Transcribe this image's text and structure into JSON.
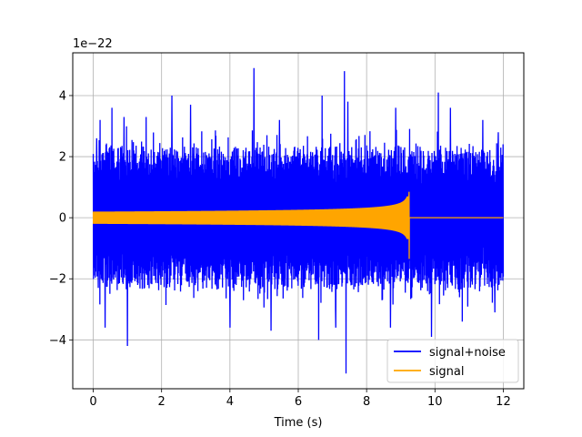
{
  "chart_data": {
    "type": "line",
    "title": "",
    "xlabel": "Time (s)",
    "ylabel": "",
    "y_offset_text": "1e−22",
    "xlim": [
      -0.6,
      12.6
    ],
    "ylim": [
      -5.6,
      5.4
    ],
    "x_ticks": [
      0,
      2,
      4,
      6,
      8,
      10,
      12
    ],
    "y_ticks": [
      -4,
      -2,
      0,
      2,
      4
    ],
    "x_tick_labels": [
      "0",
      "2",
      "4",
      "6",
      "8",
      "10",
      "12"
    ],
    "y_tick_labels": [
      "−4",
      "−2",
      "0",
      "2",
      "4"
    ],
    "grid": true,
    "legend_position": "lower-right",
    "series": [
      {
        "name": "signal+noise",
        "color": "#0000ff",
        "x_range": [
          0,
          12
        ],
        "typical_envelope": 2.2,
        "peaks": [
          {
            "x": 0.1,
            "y": 2.6
          },
          {
            "x": 0.2,
            "y": 3.2
          },
          {
            "x": 0.55,
            "y": 3.6
          },
          {
            "x": 0.9,
            "y": 3.3
          },
          {
            "x": 1.55,
            "y": 3.3
          },
          {
            "x": 2.3,
            "y": 4.0
          },
          {
            "x": 2.85,
            "y": 3.7
          },
          {
            "x": 4.7,
            "y": 4.9
          },
          {
            "x": 5.45,
            "y": 3.2
          },
          {
            "x": 6.7,
            "y": 4.0
          },
          {
            "x": 7.35,
            "y": 4.8
          },
          {
            "x": 7.45,
            "y": 3.8
          },
          {
            "x": 8.85,
            "y": 3.6
          },
          {
            "x": 10.1,
            "y": 4.1
          },
          {
            "x": 10.45,
            "y": 3.6
          },
          {
            "x": 11.4,
            "y": 3.2
          },
          {
            "x": 11.85,
            "y": 2.8
          },
          {
            "x": 0.15,
            "y": -2.3
          },
          {
            "x": 0.2,
            "y": -3.4
          },
          {
            "x": 0.35,
            "y": -3.6
          },
          {
            "x": 1.0,
            "y": -4.2
          },
          {
            "x": 1.55,
            "y": -3.6
          },
          {
            "x": 2.3,
            "y": -3.5
          },
          {
            "x": 4.0,
            "y": -3.6
          },
          {
            "x": 5.2,
            "y": -3.7
          },
          {
            "x": 6.6,
            "y": -4.0
          },
          {
            "x": 7.1,
            "y": -3.6
          },
          {
            "x": 7.4,
            "y": -5.1
          },
          {
            "x": 8.7,
            "y": -3.6
          },
          {
            "x": 9.9,
            "y": -3.9
          },
          {
            "x": 10.8,
            "y": -3.4
          },
          {
            "x": 11.75,
            "y": -3.1
          }
        ]
      },
      {
        "name": "signal",
        "color": "#ffa500",
        "x_range": [
          0,
          12
        ],
        "start_amplitude": 0.2,
        "merger_time": 9.25,
        "peak_max": 0.85,
        "peak_min": -1.35,
        "post_merger_value": 0
      }
    ]
  }
}
